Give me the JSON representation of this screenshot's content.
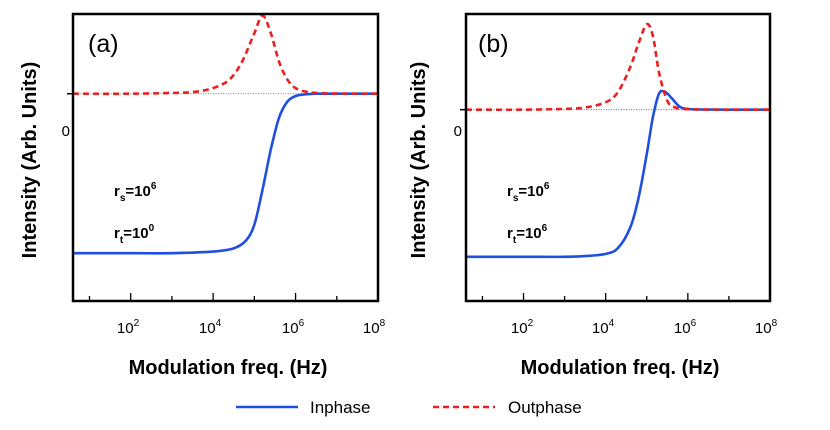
{
  "chart_data": [
    {
      "type": "line",
      "panel_label": "(a)",
      "xlabel": "Modulation freq. (Hz)",
      "ylabel": "Intensity (Arb. Units)",
      "x_scale": "log10",
      "xlim_log10": [
        0.6,
        8
      ],
      "x_ticks": [
        {
          "base": "10",
          "exp": "2"
        },
        {
          "base": "10",
          "exp": "4"
        },
        {
          "base": "10",
          "exp": "6"
        },
        {
          "base": "10",
          "exp": "8"
        }
      ],
      "y_tick_label": "0",
      "ylim": [
        -1.3,
        0.5
      ],
      "params": {
        "rs_label": "r",
        "rs_sub": "s",
        "rs_eq": "=10",
        "rs_exp": "6",
        "rt_label": "r",
        "rt_sub": "t",
        "rt_eq": "=10",
        "rt_exp": "0"
      },
      "series": [
        {
          "name": "Inphase",
          "color": "#1f4fe0",
          "style": "solid",
          "x_log10": [
            0.6,
            2,
            3,
            4,
            4.5,
            4.8,
            5,
            5.2,
            5.4,
            5.6,
            5.8,
            6,
            6.2,
            6.5,
            7,
            8
          ],
          "y": [
            -1.0,
            -1.0,
            -1.0,
            -0.99,
            -0.97,
            -0.92,
            -0.82,
            -0.6,
            -0.35,
            -0.15,
            -0.05,
            -0.015,
            -0.005,
            0,
            0,
            0
          ]
        },
        {
          "name": "Outphase",
          "color": "#e8201f",
          "style": "dashed",
          "x_log10": [
            0.6,
            2,
            3,
            3.5,
            4,
            4.4,
            4.7,
            5,
            5.2,
            5.4,
            5.6,
            5.8,
            6,
            6.3,
            6.6,
            7,
            8
          ],
          "y": [
            0,
            0,
            0.005,
            0.01,
            0.035,
            0.09,
            0.2,
            0.38,
            0.49,
            0.38,
            0.2,
            0.09,
            0.035,
            0.01,
            0.004,
            0.001,
            0
          ]
        }
      ]
    },
    {
      "type": "line",
      "panel_label": "(b)",
      "xlabel": "Modulation freq. (Hz)",
      "ylabel": "Intensity (Arb. Units)",
      "x_scale": "log10",
      "xlim_log10": [
        0.6,
        8
      ],
      "x_ticks": [
        {
          "base": "10",
          "exp": "2"
        },
        {
          "base": "10",
          "exp": "4"
        },
        {
          "base": "10",
          "exp": "6"
        },
        {
          "base": "10",
          "exp": "8"
        }
      ],
      "y_tick_label": "0",
      "ylim": [
        -1.3,
        0.65
      ],
      "params": {
        "rs_label": "r",
        "rs_sub": "s",
        "rs_eq": "=10",
        "rs_exp": "6",
        "rt_label": "r",
        "rt_sub": "t",
        "rt_eq": "=10",
        "rt_exp": "6"
      },
      "series": [
        {
          "name": "Inphase",
          "color": "#1f4fe0",
          "style": "solid",
          "x_log10": [
            0.6,
            2,
            3,
            3.5,
            4,
            4.3,
            4.6,
            4.8,
            5,
            5.15,
            5.3,
            5.45,
            5.6,
            5.8,
            6,
            6.3,
            7,
            8
          ],
          "y": [
            -1.0,
            -1.0,
            -1.0,
            -0.995,
            -0.98,
            -0.94,
            -0.8,
            -0.6,
            -0.3,
            -0.05,
            0.11,
            0.12,
            0.08,
            0.02,
            0.005,
            0.001,
            0,
            0
          ]
        },
        {
          "name": "Outphase",
          "color": "#e8201f",
          "style": "dashed",
          "x_log10": [
            0.6,
            2,
            3,
            3.5,
            4,
            4.3,
            4.6,
            4.8,
            5,
            5.15,
            5.3,
            5.5,
            5.7,
            6,
            6.3,
            7,
            8
          ],
          "y": [
            0,
            0,
            0.005,
            0.015,
            0.05,
            0.12,
            0.29,
            0.45,
            0.58,
            0.5,
            0.25,
            0.06,
            0.015,
            0.003,
            0.001,
            0,
            0
          ]
        }
      ]
    }
  ],
  "legend": [
    {
      "label": "Inphase",
      "color": "#1f4fe0",
      "style": "solid"
    },
    {
      "label": "Outphase",
      "color": "#e8201f",
      "style": "dashed"
    }
  ]
}
